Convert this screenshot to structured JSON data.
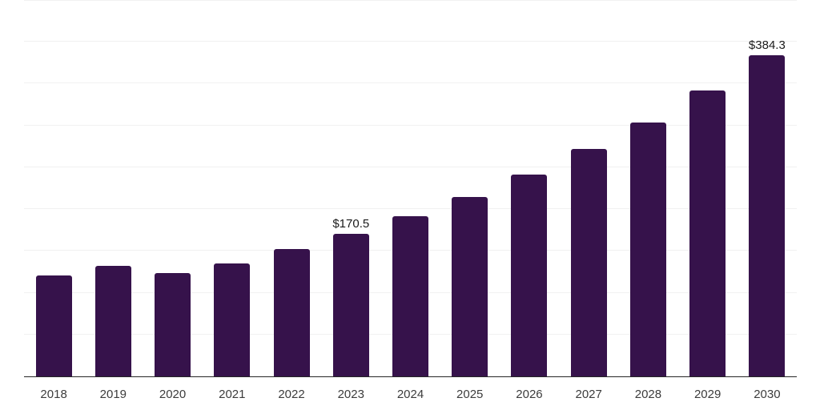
{
  "chart_data": {
    "type": "bar",
    "title": "",
    "xlabel": "",
    "ylabel": "",
    "categories": [
      "2018",
      "2019",
      "2020",
      "2021",
      "2022",
      "2023",
      "2024",
      "2025",
      "2026",
      "2027",
      "2028",
      "2029",
      "2030"
    ],
    "values": [
      121.0,
      132.5,
      124.0,
      135.0,
      151.8,
      170.5,
      191.8,
      214.1,
      241.3,
      271.6,
      303.4,
      341.9,
      384.3
    ],
    "data_labels": [
      {
        "category": "2023",
        "text": "$170.5"
      },
      {
        "category": "2030",
        "text": "$384.3"
      }
    ],
    "ylim": [
      0,
      450
    ],
    "gridline_step": 50,
    "grid": "horizontal",
    "y_tick_labels_shown": false,
    "legend": "none",
    "bar_color": "#36124b",
    "gridline_color": "#f1f1f1",
    "axis_line_color": "#262626",
    "tick_label_color": "#3c3c3c",
    "data_label_color": "#1a1a1a"
  }
}
